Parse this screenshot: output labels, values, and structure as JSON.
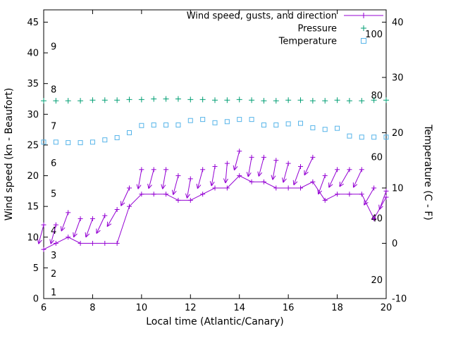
{
  "chart_data": {
    "type": "line",
    "xlabel": "Local time (Atlantic/Canary)",
    "ylabel_left": "Wind speed (kn - Beaufort)",
    "ylabel_right": "Temperature (C - F)",
    "xlim": [
      6,
      20
    ],
    "ylim_left": [
      0,
      47
    ],
    "ylim_right": [
      -10,
      42.2
    ],
    "grid": false,
    "x_ticks": [
      6,
      8,
      10,
      12,
      14,
      16,
      18,
      20
    ],
    "left_ticks": [
      0,
      5,
      10,
      15,
      20,
      25,
      30,
      35,
      40,
      45
    ],
    "right_ticks": [
      -10,
      0,
      10,
      20,
      30,
      40
    ],
    "beaufort_scale": [
      {
        "label": "1",
        "kn": 1
      },
      {
        "label": "2",
        "kn": 4
      },
      {
        "label": "3",
        "kn": 7
      },
      {
        "label": "4",
        "kn": 11
      },
      {
        "label": "5",
        "kn": 17
      },
      {
        "label": "6",
        "kn": 22
      },
      {
        "label": "7",
        "kn": 28
      },
      {
        "label": "8",
        "kn": 34
      },
      {
        "label": "9",
        "kn": 41
      }
    ],
    "fahrenheit_scale": [
      {
        "label": "20",
        "f": 20
      },
      {
        "label": "40",
        "f": 40
      },
      {
        "label": "60",
        "f": 60
      },
      {
        "label": "80",
        "f": 80
      },
      {
        "label": "100",
        "f": 100
      }
    ],
    "colors": {
      "wind": "#9400d3",
      "pressure": "#009e73",
      "temperature": "#56b4e9",
      "axis": "#000000",
      "background": "#ffffff"
    },
    "legend": [
      {
        "series": "wind",
        "label": "Wind speed, gusts, and direction",
        "marker": "plus-line",
        "color": "#9400d3"
      },
      {
        "series": "pressure",
        "label": "Pressure",
        "marker": "plus",
        "color": "#009e73"
      },
      {
        "series": "temperature",
        "label": "Temperature",
        "marker": "square",
        "color": "#56b4e9"
      }
    ],
    "x": [
      6,
      6.5,
      7,
      7.5,
      8,
      8.5,
      9,
      9.5,
      10,
      10.5,
      11,
      11.5,
      12,
      12.5,
      13,
      13.5,
      14,
      14.5,
      15,
      15.5,
      16,
      16.5,
      17,
      17.5,
      18,
      18.5,
      19,
      19.5,
      20
    ],
    "series": [
      {
        "name": "wind_speed_kn",
        "axis": "left",
        "values": [
          8,
          9,
          10,
          9,
          9,
          9,
          9,
          15,
          17,
          17,
          17,
          16,
          16,
          17,
          18,
          18,
          20,
          19,
          19,
          18,
          18,
          18,
          19,
          16,
          17,
          17,
          17,
          13,
          16.5
        ]
      },
      {
        "name": "wind_gust_kn",
        "axis": "left",
        "values": [
          12,
          12,
          14,
          13,
          13,
          13.5,
          14.5,
          18,
          21,
          21,
          21,
          20,
          19.5,
          21,
          21.5,
          22,
          24,
          23,
          23,
          22.5,
          22,
          21.5,
          23,
          20,
          21,
          21,
          21,
          18,
          17.5
        ]
      },
      {
        "name": "wind_direction_deg",
        "axis": "none",
        "values": [
          195,
          195,
          200,
          200,
          200,
          205,
          210,
          205,
          190,
          195,
          190,
          195,
          190,
          195,
          190,
          185,
          195,
          190,
          195,
          190,
          195,
          200,
          205,
          200,
          205,
          210,
          205,
          210,
          200
        ]
      },
      {
        "name": "pressure_plotted_kn_axis",
        "axis": "left",
        "values": [
          32.2,
          32.2,
          32.2,
          32.2,
          32.3,
          32.3,
          32.3,
          32.4,
          32.4,
          32.5,
          32.5,
          32.5,
          32.4,
          32.4,
          32.3,
          32.3,
          32.4,
          32.3,
          32.2,
          32.2,
          32.3,
          32.3,
          32.2,
          32.2,
          32.3,
          32.2,
          32.2,
          32.3,
          32.3
        ]
      },
      {
        "name": "temperature_c",
        "axis": "right",
        "values": [
          18.3,
          18.3,
          18.2,
          18.2,
          18.3,
          18.7,
          19.1,
          20.0,
          21.3,
          21.4,
          21.4,
          21.4,
          22.2,
          22.4,
          21.8,
          22.0,
          22.4,
          22.4,
          21.4,
          21.4,
          21.6,
          21.7,
          20.9,
          20.6,
          20.8,
          19.4,
          19.2,
          19.2,
          19.2
        ]
      }
    ]
  }
}
